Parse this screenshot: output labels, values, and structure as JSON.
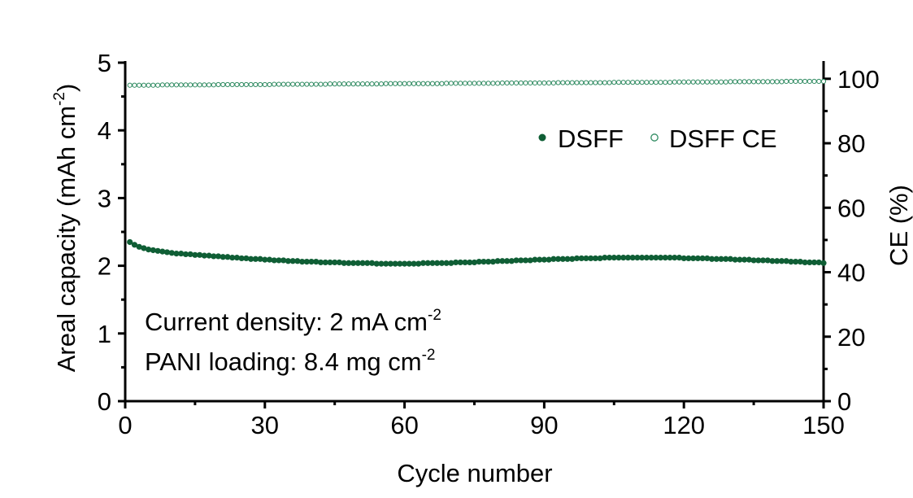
{
  "chart_data": {
    "type": "scatter",
    "xlabel": "Cycle number",
    "ylabel_left": {
      "text": "Areal capacity (mAh cm",
      "sup": "-2",
      "tail": ")"
    },
    "ylabel_right": "CE (%)",
    "xlim": [
      0,
      150
    ],
    "ylim_left": [
      0,
      5
    ],
    "ylim_right": [
      0,
      105
    ],
    "x_ticks": [
      0,
      30,
      60,
      90,
      120,
      150
    ],
    "x_tick_labels": [
      "0",
      "30",
      "60",
      "90",
      "120",
      "150"
    ],
    "y_left_ticks": [
      0,
      1,
      2,
      3,
      4,
      5
    ],
    "y_left_tick_labels": [
      "0",
      "1",
      "2",
      "3",
      "4",
      "5"
    ],
    "y_right_ticks": [
      0,
      20,
      40,
      60,
      80,
      100
    ],
    "y_right_tick_labels": [
      "0",
      "20",
      "40",
      "60",
      "80",
      "100"
    ],
    "grid": false,
    "legend_position": "top-right",
    "colors": {
      "accent": "#0f5e35",
      "ce": "#2e8a60"
    },
    "annotations": [
      {
        "text": "Current density: 2 mA cm",
        "sup": "-2"
      },
      {
        "text": "PANI loading: 8.4 mg cm",
        "sup": "-2"
      }
    ],
    "series": [
      {
        "name": "DSFF",
        "axis": "left",
        "marker": "filled-circle",
        "x": [
          1,
          2,
          3,
          4,
          5,
          6,
          7,
          8,
          9,
          10,
          11,
          12,
          13,
          14,
          15,
          16,
          17,
          18,
          19,
          20,
          21,
          22,
          23,
          24,
          25,
          26,
          27,
          28,
          29,
          30,
          31,
          32,
          33,
          34,
          35,
          36,
          37,
          38,
          39,
          40,
          41,
          42,
          43,
          44,
          45,
          46,
          47,
          48,
          49,
          50,
          51,
          52,
          53,
          54,
          55,
          56,
          57,
          58,
          59,
          60,
          61,
          62,
          63,
          64,
          65,
          66,
          67,
          68,
          69,
          70,
          71,
          72,
          73,
          74,
          75,
          76,
          77,
          78,
          79,
          80,
          81,
          82,
          83,
          84,
          85,
          86,
          87,
          88,
          89,
          90,
          91,
          92,
          93,
          94,
          95,
          96,
          97,
          98,
          99,
          100,
          101,
          102,
          103,
          104,
          105,
          106,
          107,
          108,
          109,
          110,
          111,
          112,
          113,
          114,
          115,
          116,
          117,
          118,
          119,
          120,
          121,
          122,
          123,
          124,
          125,
          126,
          127,
          128,
          129,
          130,
          131,
          132,
          133,
          134,
          135,
          136,
          137,
          138,
          139,
          140,
          141,
          142,
          143,
          144,
          145,
          146,
          147,
          148,
          149,
          150
        ],
        "y": [
          2.35,
          2.31,
          2.28,
          2.26,
          2.24,
          2.23,
          2.22,
          2.21,
          2.2,
          2.19,
          2.18,
          2.18,
          2.17,
          2.17,
          2.16,
          2.16,
          2.15,
          2.15,
          2.14,
          2.14,
          2.13,
          2.13,
          2.12,
          2.12,
          2.11,
          2.11,
          2.1,
          2.1,
          2.1,
          2.09,
          2.09,
          2.08,
          2.08,
          2.08,
          2.07,
          2.07,
          2.07,
          2.06,
          2.06,
          2.06,
          2.06,
          2.05,
          2.05,
          2.05,
          2.05,
          2.05,
          2.04,
          2.04,
          2.04,
          2.04,
          2.04,
          2.04,
          2.04,
          2.03,
          2.03,
          2.03,
          2.03,
          2.03,
          2.03,
          2.03,
          2.03,
          2.03,
          2.03,
          2.04,
          2.04,
          2.04,
          2.04,
          2.04,
          2.04,
          2.04,
          2.05,
          2.05,
          2.05,
          2.05,
          2.05,
          2.06,
          2.06,
          2.06,
          2.06,
          2.07,
          2.07,
          2.07,
          2.07,
          2.08,
          2.08,
          2.08,
          2.08,
          2.09,
          2.09,
          2.09,
          2.09,
          2.1,
          2.1,
          2.1,
          2.1,
          2.1,
          2.11,
          2.11,
          2.11,
          2.11,
          2.11,
          2.11,
          2.12,
          2.12,
          2.12,
          2.12,
          2.12,
          2.12,
          2.12,
          2.12,
          2.12,
          2.12,
          2.12,
          2.12,
          2.12,
          2.12,
          2.12,
          2.12,
          2.12,
          2.11,
          2.11,
          2.11,
          2.11,
          2.11,
          2.11,
          2.1,
          2.1,
          2.1,
          2.1,
          2.1,
          2.09,
          2.09,
          2.09,
          2.09,
          2.08,
          2.08,
          2.08,
          2.08,
          2.07,
          2.07,
          2.07,
          2.07,
          2.06,
          2.06,
          2.06,
          2.05,
          2.05,
          2.05,
          2.05,
          2.04
        ]
      },
      {
        "name": "DSFF CE",
        "axis": "right",
        "marker": "open-circle",
        "x": [
          1,
          2,
          3,
          4,
          5,
          6,
          7,
          8,
          9,
          10,
          11,
          12,
          13,
          14,
          15,
          16,
          17,
          18,
          19,
          20,
          21,
          22,
          23,
          24,
          25,
          26,
          27,
          28,
          29,
          30,
          31,
          32,
          33,
          34,
          35,
          36,
          37,
          38,
          39,
          40,
          41,
          42,
          43,
          44,
          45,
          46,
          47,
          48,
          49,
          50,
          51,
          52,
          53,
          54,
          55,
          56,
          57,
          58,
          59,
          60,
          61,
          62,
          63,
          64,
          65,
          66,
          67,
          68,
          69,
          70,
          71,
          72,
          73,
          74,
          75,
          76,
          77,
          78,
          79,
          80,
          81,
          82,
          83,
          84,
          85,
          86,
          87,
          88,
          89,
          90,
          91,
          92,
          93,
          94,
          95,
          96,
          97,
          98,
          99,
          100,
          101,
          102,
          103,
          104,
          105,
          106,
          107,
          108,
          109,
          110,
          111,
          112,
          113,
          114,
          115,
          116,
          117,
          118,
          119,
          120,
          121,
          122,
          123,
          124,
          125,
          126,
          127,
          128,
          129,
          130,
          131,
          132,
          133,
          134,
          135,
          136,
          137,
          138,
          139,
          140,
          141,
          142,
          143,
          144,
          145,
          146,
          147,
          148,
          149,
          150
        ],
        "y": [
          98.0,
          98.0,
          98.0,
          98.0,
          98.0,
          98.0,
          98.0,
          98.1,
          98.1,
          98.1,
          98.1,
          98.1,
          98.1,
          98.1,
          98.1,
          98.1,
          98.1,
          98.1,
          98.1,
          98.2,
          98.2,
          98.2,
          98.2,
          98.2,
          98.2,
          98.2,
          98.2,
          98.2,
          98.2,
          98.2,
          98.2,
          98.3,
          98.3,
          98.3,
          98.3,
          98.3,
          98.3,
          98.3,
          98.3,
          98.3,
          98.3,
          98.3,
          98.3,
          98.4,
          98.4,
          98.4,
          98.4,
          98.4,
          98.4,
          98.4,
          98.4,
          98.4,
          98.4,
          98.4,
          98.4,
          98.5,
          98.5,
          98.5,
          98.5,
          98.5,
          98.5,
          98.5,
          98.5,
          98.5,
          98.5,
          98.5,
          98.5,
          98.5,
          98.6,
          98.6,
          98.6,
          98.6,
          98.6,
          98.6,
          98.6,
          98.6,
          98.6,
          98.6,
          98.6,
          98.6,
          98.7,
          98.7,
          98.7,
          98.7,
          98.7,
          98.7,
          98.7,
          98.7,
          98.7,
          98.7,
          98.7,
          98.7,
          98.8,
          98.8,
          98.8,
          98.8,
          98.8,
          98.8,
          98.8,
          98.8,
          98.8,
          98.8,
          98.8,
          98.8,
          98.9,
          98.9,
          98.9,
          98.9,
          98.9,
          98.9,
          98.9,
          98.9,
          98.9,
          98.9,
          98.9,
          98.9,
          98.9,
          99.0,
          99.0,
          99.0,
          99.0,
          99.0,
          99.0,
          99.0,
          99.0,
          99.0,
          99.0,
          99.0,
          99.0,
          99.1,
          99.1,
          99.1,
          99.1,
          99.1,
          99.1,
          99.1,
          99.1,
          99.1,
          99.1,
          99.1,
          99.1,
          99.2,
          99.2,
          99.2,
          99.2,
          99.2,
          99.2,
          99.2,
          99.2,
          99.2
        ]
      }
    ]
  }
}
